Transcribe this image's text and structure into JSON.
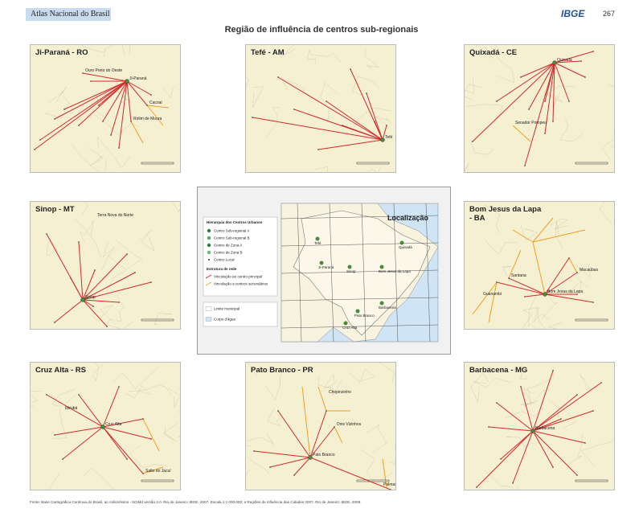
{
  "header": {
    "atlas": "Atlas Nacional do Brasil",
    "logo": "IBGE",
    "page": "267"
  },
  "title": "Região de influência de centros sub-regionais",
  "panels": [
    {
      "title": "Ji-Paraná - RO",
      "cities": [
        "Ji-Paraná",
        "Ouro Preto do Oeste",
        "Cacoal",
        "Rolim de Moura"
      ]
    },
    {
      "title": "Tefé - AM",
      "cities": [
        "Tefé"
      ]
    },
    {
      "title": "Quixadá - CE",
      "cities": [
        "Quixadá",
        "Senador Pompeu"
      ]
    },
    {
      "title": "Sinop - MT",
      "cities": [
        "Sinop",
        "Terra Nova do Norte"
      ]
    },
    {
      "title": "Bom Jesus da Lapa - BA",
      "cities": [
        "Bom Jesus da Lapa",
        "Santana",
        "Macaúbas",
        "Guanambi"
      ]
    },
    {
      "title": "Cruz Alta - RS",
      "cities": [
        "Cruz Alta",
        "Ibirubá",
        "Salto do Jacuí"
      ]
    },
    {
      "title": "Pato Branco - PR",
      "cities": [
        "Pato Branco",
        "Chopinzinho",
        "Dois Vizinhos",
        "Palmas"
      ]
    },
    {
      "title": "Barbacena - MG",
      "cities": [
        "Barbacena"
      ]
    }
  ],
  "legend": {
    "heading": "Hierarquia dos Centros Urbanos",
    "levels": [
      "Centro Sub-regional A",
      "Centro Sub-regional B",
      "Centro de Zona A",
      "Centro de Zona B",
      "Centro Local"
    ],
    "network_heading": "Estrutura de rede",
    "network": [
      "Vinculação ao centro principal",
      "Vinculação a centros secundários"
    ],
    "limits": [
      "Limite municipal",
      "Corpo d'água"
    ]
  },
  "location_map": {
    "title": "Localização",
    "places": [
      "Tefé",
      "Quixadá",
      "Ji-Paraná",
      "Sinop",
      "Bom Jesus da Lapa",
      "Barbacena",
      "Pato Branco",
      "Cruz Alta"
    ]
  },
  "source": "Fonte: Base Cartográfica Contínua do Brasil, ao milionésimo - bCIMd versão 2.0. Rio de Janeiro: IBGE, 2007. Escala 1:1 000 000; e Regiões de influência das Cidades 2007. Rio de Janeiro: IBGE, 2008."
}
